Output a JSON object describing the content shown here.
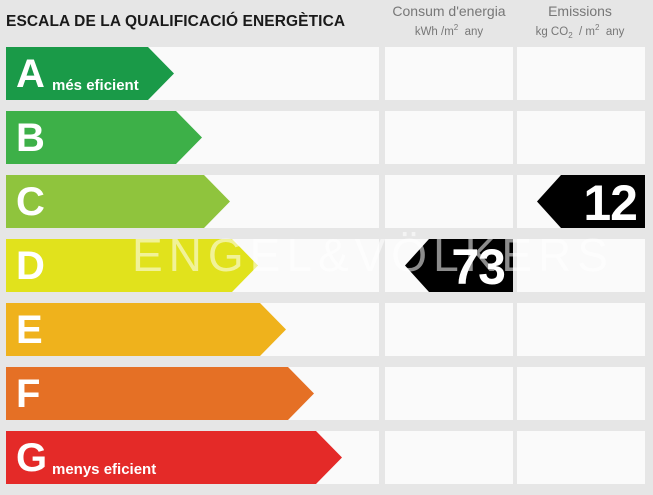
{
  "title": "ESCALA DE LA QUALIFICACIÓ ENERGÈTICA",
  "columns": {
    "consumption": {
      "label": "Consum d'energia",
      "unit_prefix": "kWh /m",
      "unit_sup": "2",
      "unit_suffix": "  any"
    },
    "emissions": {
      "label": "Emissions",
      "unit_prefix": "kg CO",
      "unit_sub": "2",
      "unit_mid": "  / m",
      "unit_sup": "2",
      "unit_suffix": "  any"
    }
  },
  "ratings": [
    {
      "letter": "A",
      "caption": "més eficient",
      "color": "#1a9a48"
    },
    {
      "letter": "B",
      "caption": "",
      "color": "#3db048"
    },
    {
      "letter": "C",
      "caption": "",
      "color": "#8fc43d"
    },
    {
      "letter": "D",
      "caption": "",
      "color": "#e1e21c"
    },
    {
      "letter": "E",
      "caption": "",
      "color": "#efb21c"
    },
    {
      "letter": "F",
      "caption": "",
      "color": "#e57025"
    },
    {
      "letter": "G",
      "caption": "menys eficient",
      "color": "#e42a28"
    }
  ],
  "consumption_value": {
    "value": "73",
    "rating": "D"
  },
  "emissions_value": {
    "value": "12",
    "rating": "C"
  },
  "watermark": "ENGEL&VÖLKERS"
}
